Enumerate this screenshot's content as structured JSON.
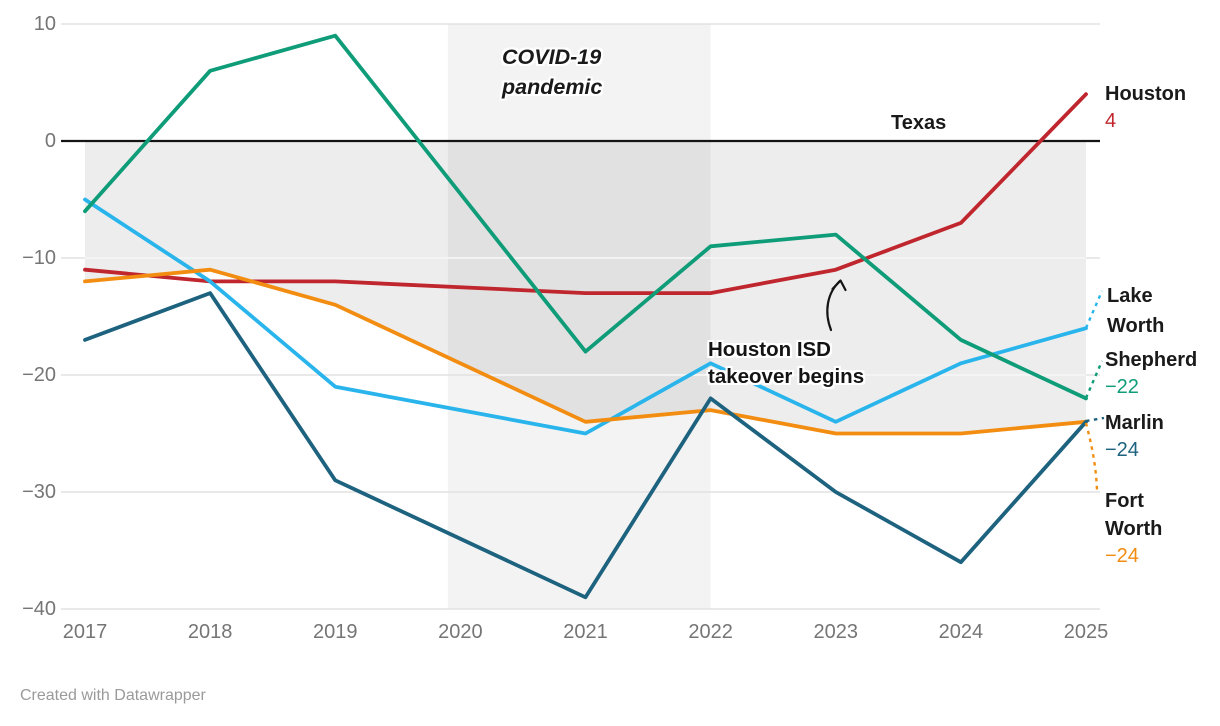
{
  "chart_data": {
    "type": "line",
    "x": [
      2017,
      2018,
      2019,
      2020,
      2021,
      2022,
      2023,
      2024,
      2025
    ],
    "series": [
      {
        "name": "Texas",
        "color": "#141414",
        "values": [
          0,
          0,
          0,
          0,
          0,
          0,
          0,
          0,
          0
        ]
      },
      {
        "name": "Houston",
        "color": "#c0262d",
        "values": [
          -11,
          -12,
          -12,
          null,
          -13,
          -13,
          -11,
          -7,
          4
        ]
      },
      {
        "name": "Lake Worth",
        "color": "#29b5ec",
        "values": [
          -5,
          -12,
          -21,
          null,
          -25,
          -19,
          -24,
          -19,
          -16
        ]
      },
      {
        "name": "Fort Worth",
        "color": "#f28d11",
        "values": [
          -12,
          -11,
          -14,
          null,
          -24,
          -23,
          -25,
          -25,
          -24
        ]
      },
      {
        "name": "Shepherd",
        "color": "#0f9c78",
        "values": [
          -6,
          6,
          9,
          null,
          -18,
          -9,
          -8,
          -17,
          -22
        ]
      },
      {
        "name": "Marlin",
        "color": "#1d627e",
        "values": [
          -17,
          -13,
          -29,
          null,
          -39,
          -22,
          -30,
          -36,
          -24
        ]
      }
    ],
    "ylim": [
      -40,
      10
    ],
    "y_tick_values": [
      10,
      0,
      -10,
      -20,
      -30,
      -40
    ],
    "y_tick_labels": [
      "10",
      "0",
      "−10",
      "−20",
      "−30",
      "−40"
    ],
    "x_tick_labels": [
      "2017",
      "2018",
      "2019",
      "2020",
      "2021",
      "2022",
      "2023",
      "2024",
      "2025"
    ],
    "grid": "horizontal",
    "legend_position": "right-edge-labels",
    "shaded_band": {
      "x_from": 2019.9,
      "x_to": 2022,
      "label": "COVID-19 pandemic"
    },
    "shaded_area": {
      "between": [
        "Texas",
        "Fort Worth"
      ]
    }
  },
  "annotations": {
    "covid": "COVID-19 pandemic",
    "texas": "Texas",
    "takeover": "Houston ISD takeover begins"
  },
  "right_labels": [
    {
      "name": "Houston",
      "value": "4",
      "color": "#c0262d"
    },
    {
      "name": "Lake Worth",
      "value": "",
      "color": "#29b5ec"
    },
    {
      "name": "Shepherd",
      "value": "−22",
      "color": "#0f9c78"
    },
    {
      "name": "Marlin",
      "value": "−24",
      "color": "#1d627e"
    },
    {
      "name": "Fort Worth",
      "value": "−24",
      "color": "#f28d11"
    }
  ],
  "footer": "Created with Datawrapper"
}
